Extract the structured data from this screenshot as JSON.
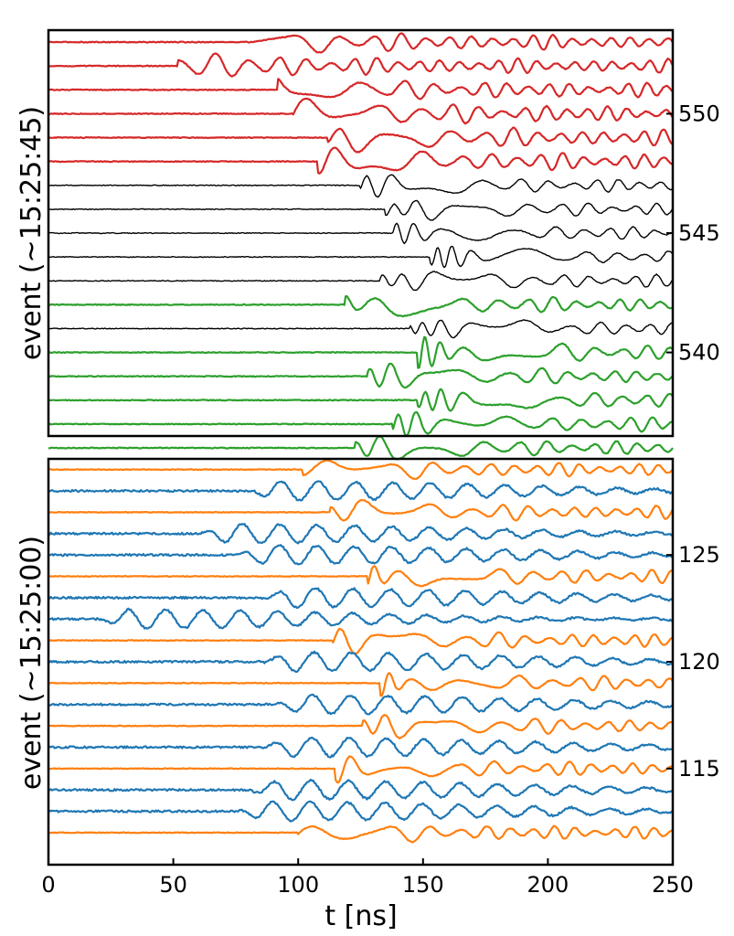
{
  "colors": {
    "red": "#d62728",
    "black": "#000000",
    "green": "#2ca02c",
    "orange": "#ff7f0e",
    "blue": "#1f77b4",
    "frame": "#000000"
  },
  "chart_data": [
    {
      "type": "line",
      "panel": "top",
      "title": "",
      "xlabel": "",
      "ylabel": "event (~15:25:45)",
      "xlim": [
        0,
        250
      ],
      "ylim": [
        536.5,
        553.5
      ],
      "yticks": [
        540,
        545,
        550
      ],
      "yticks_side": "right",
      "show_x_tick_labels": false,
      "series": [
        {
          "event": 553,
          "color": "red",
          "onset": 78,
          "kind": "burst",
          "amp": 0.55
        },
        {
          "event": 552,
          "color": "red",
          "onset": 52,
          "kind": "burst",
          "amp": 0.55
        },
        {
          "event": 551,
          "color": "red",
          "onset": 92,
          "kind": "burst",
          "amp": 0.55
        },
        {
          "event": 550,
          "color": "red",
          "onset": 98,
          "kind": "burst",
          "amp": 0.6
        },
        {
          "event": 549,
          "color": "red",
          "onset": 112,
          "kind": "burst",
          "amp": 0.6
        },
        {
          "event": 548,
          "color": "red",
          "onset": 108,
          "kind": "burst",
          "amp": 0.6
        },
        {
          "event": 547,
          "color": "black",
          "onset": 125,
          "kind": "burst",
          "amp": 0.45
        },
        {
          "event": 546,
          "color": "black",
          "onset": 135,
          "kind": "burst",
          "amp": 0.45
        },
        {
          "event": 545,
          "color": "black",
          "onset": 138,
          "kind": "burst",
          "amp": 0.45
        },
        {
          "event": 544,
          "color": "black",
          "onset": 153,
          "kind": "burst",
          "amp": 0.45
        },
        {
          "event": 543,
          "color": "black",
          "onset": 133,
          "kind": "burst",
          "amp": 0.45
        },
        {
          "event": 542,
          "color": "green",
          "onset": 119,
          "kind": "burst",
          "amp": 0.5
        },
        {
          "event": 541,
          "color": "black",
          "onset": 145,
          "kind": "burst",
          "amp": 0.45
        },
        {
          "event": 540,
          "color": "green",
          "onset": 148,
          "kind": "burst",
          "amp": 0.55
        },
        {
          "event": 539,
          "color": "green",
          "onset": 128,
          "kind": "burst",
          "amp": 0.5
        },
        {
          "event": 538,
          "color": "green",
          "onset": 148,
          "kind": "burst",
          "amp": 0.5
        },
        {
          "event": 537,
          "color": "green",
          "onset": 138,
          "kind": "burst",
          "amp": 0.5
        },
        {
          "event": 536,
          "color": "green",
          "onset": 123,
          "kind": "burst",
          "amp": 0.5
        }
      ]
    },
    {
      "type": "line",
      "panel": "bottom",
      "title": "",
      "xlabel": "t [ns]",
      "ylabel": "event (~15:25:00)",
      "xlim": [
        0,
        250
      ],
      "ylim": [
        110.5,
        129.5
      ],
      "yticks": [
        115,
        120,
        125
      ],
      "yticks_side": "right",
      "xticks": [
        0,
        50,
        100,
        150,
        200,
        250
      ],
      "series": [
        {
          "event": 129,
          "color": "orange",
          "onset": 102,
          "kind": "burst",
          "amp": 0.55
        },
        {
          "event": 128,
          "color": "blue",
          "onset": 80,
          "kind": "wave",
          "amp": 0.45
        },
        {
          "event": 127,
          "color": "orange",
          "onset": 113,
          "kind": "burst",
          "amp": 0.55
        },
        {
          "event": 126,
          "color": "blue",
          "onset": 60,
          "kind": "wave",
          "amp": 0.45
        },
        {
          "event": 125,
          "color": "blue",
          "onset": 75,
          "kind": "wave",
          "amp": 0.45
        },
        {
          "event": 124,
          "color": "orange",
          "onset": 128,
          "kind": "burst",
          "amp": 0.55
        },
        {
          "event": 123,
          "color": "blue",
          "onset": 85,
          "kind": "wave",
          "amp": 0.45
        },
        {
          "event": 122,
          "color": "blue",
          "onset": 20,
          "kind": "wave",
          "amp": 0.45
        },
        {
          "event": 121,
          "color": "orange",
          "onset": 114,
          "kind": "burst",
          "amp": 0.55
        },
        {
          "event": 120,
          "color": "blue",
          "onset": 85,
          "kind": "wave",
          "amp": 0.45
        },
        {
          "event": 119,
          "color": "orange",
          "onset": 133,
          "kind": "burst",
          "amp": 0.55
        },
        {
          "event": 118,
          "color": "blue",
          "onset": 90,
          "kind": "wave",
          "amp": 0.45
        },
        {
          "event": 117,
          "color": "orange",
          "onset": 126,
          "kind": "burst",
          "amp": 0.55
        },
        {
          "event": 116,
          "color": "blue",
          "onset": 85,
          "kind": "wave",
          "amp": 0.45
        },
        {
          "event": 115,
          "color": "orange",
          "onset": 115,
          "kind": "burst",
          "amp": 0.55
        },
        {
          "event": 114,
          "color": "blue",
          "onset": 80,
          "kind": "wave",
          "amp": 0.45
        },
        {
          "event": 113,
          "color": "blue",
          "onset": 75,
          "kind": "wave",
          "amp": 0.45
        },
        {
          "event": 112,
          "color": "orange",
          "onset": 100,
          "kind": "burst",
          "amp": 0.55
        }
      ]
    }
  ]
}
